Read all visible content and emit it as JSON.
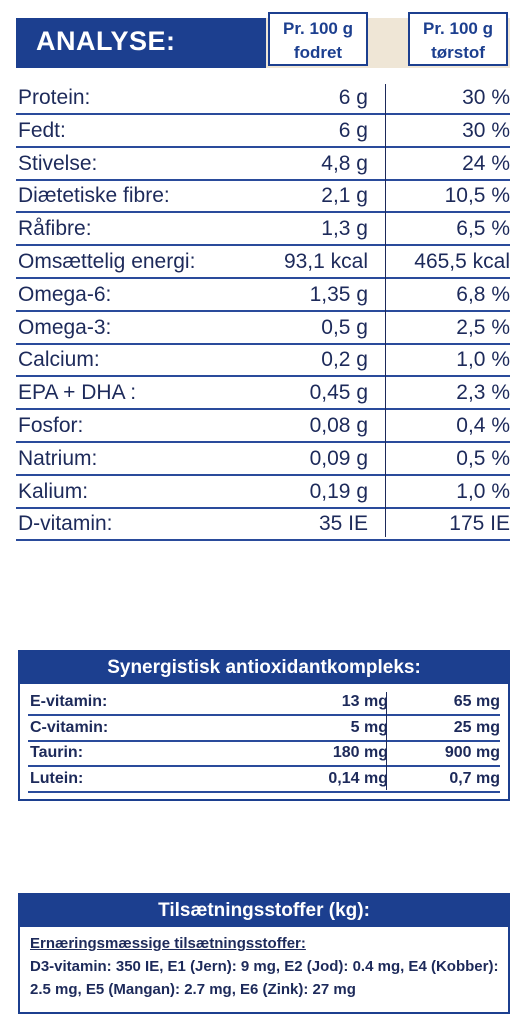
{
  "header": {
    "title": "ANALYSE:",
    "col1": "Pr. 100 g fodret",
    "col2": "Pr. 100 g tørstof"
  },
  "analysis": {
    "rows": [
      [
        "Protein:",
        "6 g",
        "30 %"
      ],
      [
        "Fedt:",
        "6 g",
        "30 %"
      ],
      [
        "Stivelse:",
        "4,8 g",
        "24 %"
      ],
      [
        "Diætetiske fibre:",
        "2,1 g",
        "10,5 %"
      ],
      [
        "Råfibre:",
        "1,3 g",
        "6,5 %"
      ],
      [
        "Omsættelig energi:",
        "93,1 kcal",
        "465,5 kcal"
      ],
      [
        "Omega-6:",
        "1,35 g",
        "6,8 %"
      ],
      [
        "Omega-3:",
        "0,5 g",
        "2,5 %"
      ],
      [
        "Calcium:",
        "0,2 g",
        "1,0 %"
      ],
      [
        "EPA + DHA :",
        "0,45 g",
        "2,3 %"
      ],
      [
        "Fosfor:",
        "0,08 g",
        "0,4 %"
      ],
      [
        "Natrium:",
        "0,09 g",
        "0,5 %"
      ],
      [
        "Kalium:",
        "0,19 g",
        "1,0 %"
      ],
      [
        "D-vitamin:",
        "35 IE",
        "175 IE"
      ]
    ]
  },
  "antioxidants": {
    "title": "Synergistisk antioxidantkompleks:",
    "rows": [
      [
        "E-vitamin:",
        "13 mg",
        "65 mg"
      ],
      [
        "C-vitamin:",
        "5 mg",
        "25 mg"
      ],
      [
        "Taurin:",
        "180 mg",
        "900 mg"
      ],
      [
        "Lutein:",
        "0,14 mg",
        "0,7 mg"
      ]
    ]
  },
  "additives": {
    "title": "Tilsætningsstoffer (kg):",
    "subtitle": "Ernæringsmæssige tilsætningsstoffer:",
    "text": "D3-vitamin: 350 IE, E1 (Jern): 9 mg, E2 (Jod): 0.4 mg, E4 (Kobber): 2.5 mg, E5 (Mangan): 2.7 mg, E6 (Zink): 27 mg"
  }
}
